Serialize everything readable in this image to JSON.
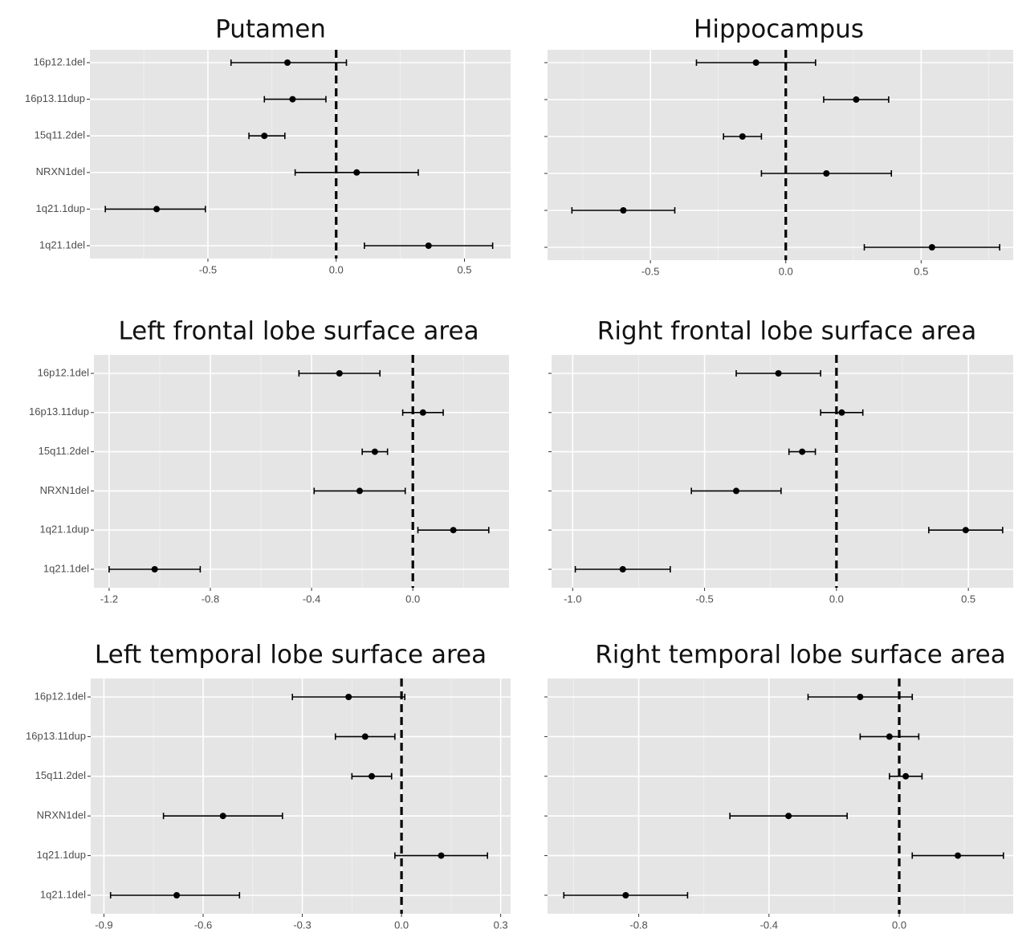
{
  "chart_data": [
    {
      "type": "scatter",
      "title": "Putamen",
      "categories": [
        "16p12.1del",
        "16p13.11dup",
        "15q11.2del",
        "NRXN1del",
        "1q21.1dup",
        "1q21.1del"
      ],
      "estimates": [
        -0.19,
        -0.17,
        -0.28,
        0.08,
        -0.7,
        0.36
      ],
      "ci_low": [
        -0.41,
        -0.28,
        -0.34,
        -0.16,
        -0.9,
        0.11
      ],
      "ci_high": [
        0.04,
        -0.04,
        -0.2,
        0.32,
        -0.51,
        0.61
      ],
      "xticks": [
        -0.5,
        0.0,
        0.5
      ],
      "xlim": [
        -0.96,
        0.68
      ],
      "reference_line": 0,
      "grid": true
    },
    {
      "type": "scatter",
      "title": "Hippocampus",
      "categories": [
        "16p12.1del",
        "16p13.11dup",
        "15q11.2del",
        "NRXN1del",
        "1q21.1dup",
        "1q21.1del"
      ],
      "estimates": [
        -0.11,
        0.26,
        -0.16,
        0.15,
        -0.6,
        0.54
      ],
      "ci_low": [
        -0.33,
        0.14,
        -0.23,
        -0.09,
        -0.79,
        0.29
      ],
      "ci_high": [
        0.11,
        0.38,
        -0.09,
        0.39,
        -0.41,
        0.79
      ],
      "xticks": [
        -0.5,
        0.0,
        0.5
      ],
      "xlim": [
        -0.88,
        0.84
      ],
      "reference_line": 0,
      "grid": true
    },
    {
      "type": "scatter",
      "title": "Left frontal lobe surface area",
      "categories": [
        "16p12.1del",
        "16p13.11dup",
        "15q11.2del",
        "NRXN1del",
        "1q21.1dup",
        "1q21.1del"
      ],
      "estimates": [
        -0.29,
        0.04,
        -0.15,
        -0.21,
        0.16,
        -1.02
      ],
      "ci_low": [
        -0.45,
        -0.04,
        -0.2,
        -0.39,
        0.02,
        -1.2
      ],
      "ci_high": [
        -0.13,
        0.12,
        -0.1,
        -0.03,
        0.3,
        -0.84
      ],
      "xticks": [
        -1.2,
        -0.8,
        -0.4,
        0.0
      ],
      "xlim": [
        -1.26,
        0.38
      ],
      "reference_line": 0,
      "grid": true
    },
    {
      "type": "scatter",
      "title": "Right frontal lobe surface area",
      "categories": [
        "16p12.1del",
        "16p13.11dup",
        "15q11.2del",
        "NRXN1del",
        "1q21.1dup",
        "1q21.1del"
      ],
      "estimates": [
        -0.22,
        0.02,
        -0.13,
        -0.38,
        0.49,
        -0.81
      ],
      "ci_low": [
        -0.38,
        -0.06,
        -0.18,
        -0.55,
        0.35,
        -0.99
      ],
      "ci_high": [
        -0.06,
        0.1,
        -0.08,
        -0.21,
        0.63,
        -0.63
      ],
      "xticks": [
        -1.0,
        -0.5,
        0.0,
        0.5
      ],
      "xlim": [
        -1.08,
        0.67
      ],
      "reference_line": 0,
      "grid": true
    },
    {
      "type": "scatter",
      "title": "Left temporal lobe surface area",
      "categories": [
        "16p12.1del",
        "16p13.11dup",
        "15q11.2del",
        "NRXN1del",
        "1q21.1dup",
        "1q21.1del"
      ],
      "estimates": [
        -0.16,
        -0.11,
        -0.09,
        -0.54,
        0.12,
        -0.68
      ],
      "ci_low": [
        -0.33,
        -0.2,
        -0.15,
        -0.72,
        -0.02,
        -0.88
      ],
      "ci_high": [
        0.01,
        -0.02,
        -0.03,
        -0.36,
        0.26,
        -0.49
      ],
      "xticks": [
        -0.9,
        -0.6,
        -0.3,
        0.0,
        0.3
      ],
      "xlim": [
        -0.94,
        0.33
      ],
      "reference_line": 0,
      "grid": true
    },
    {
      "type": "scatter",
      "title": "Right temporal lobe surface area",
      "categories": [
        "16p12.1del",
        "16p13.11dup",
        "15q11.2del",
        "NRXN1del",
        "1q21.1dup",
        "1q21.1del"
      ],
      "estimates": [
        -0.12,
        -0.03,
        0.02,
        -0.34,
        0.18,
        -0.84
      ],
      "ci_low": [
        -0.28,
        -0.12,
        -0.03,
        -0.52,
        0.04,
        -1.03
      ],
      "ci_high": [
        0.04,
        0.06,
        0.07,
        -0.16,
        0.32,
        -0.65
      ],
      "xticks": [
        -0.8,
        -0.4,
        0.0
      ],
      "xlim": [
        -1.08,
        0.35
      ],
      "reference_line": 0,
      "grid": true
    }
  ]
}
